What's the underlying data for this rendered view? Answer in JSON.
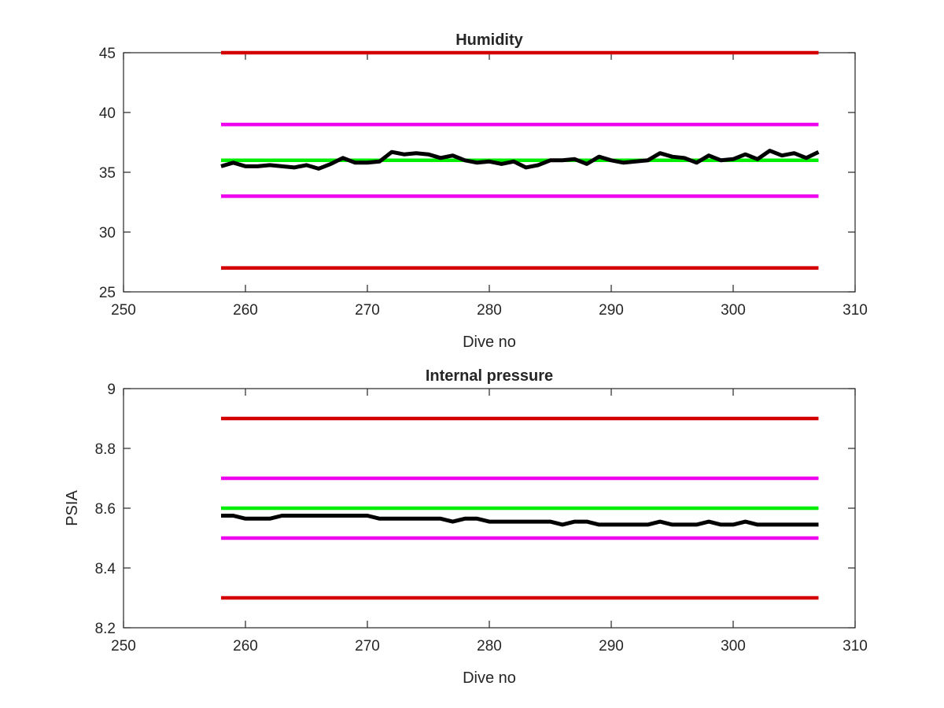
{
  "colors": {
    "background": "#ffffff",
    "axes": "#262626",
    "measured": "#000000",
    "limit_outer": "#d40000",
    "limit_inner": "#ee00ee",
    "target": "#00ee00"
  },
  "chart_data": [
    {
      "type": "line",
      "title": "Humidity",
      "xlabel": "Dive no",
      "ylabel": "",
      "xlim": [
        250,
        310
      ],
      "ylim": [
        25,
        45
      ],
      "xticks": [
        "250",
        "260",
        "270",
        "280",
        "290",
        "300",
        "310"
      ],
      "yticks": [
        "25",
        "30",
        "35",
        "40",
        "45"
      ],
      "grid": false,
      "legend": "none",
      "series": [
        {
          "color": "#d40000",
          "x": [
            258,
            307
          ],
          "y": [
            45,
            45
          ]
        },
        {
          "color": "#ee00ee",
          "x": [
            258,
            307
          ],
          "y": [
            39,
            39
          ]
        },
        {
          "color": "#00ee00",
          "x": [
            258,
            307
          ],
          "y": [
            36,
            36
          ]
        },
        {
          "color": "#ee00ee",
          "x": [
            258,
            307
          ],
          "y": [
            33,
            33
          ]
        },
        {
          "color": "#d40000",
          "x": [
            258,
            307
          ],
          "y": [
            27,
            27
          ]
        },
        {
          "color": "#000000",
          "x": [
            258,
            259,
            260,
            261,
            262,
            263,
            264,
            265,
            266,
            267,
            268,
            269,
            270,
            271,
            272,
            273,
            274,
            275,
            276,
            277,
            278,
            279,
            280,
            281,
            282,
            283,
            284,
            285,
            286,
            287,
            288,
            289,
            290,
            291,
            292,
            293,
            294,
            295,
            296,
            297,
            298,
            299,
            300,
            301,
            302,
            303,
            304,
            305,
            306,
            307
          ],
          "y": [
            35.5,
            35.8,
            35.5,
            35.5,
            35.6,
            35.5,
            35.4,
            35.6,
            35.3,
            35.7,
            36.2,
            35.8,
            35.8,
            35.9,
            36.7,
            36.5,
            36.6,
            36.5,
            36.2,
            36.4,
            36.0,
            35.8,
            35.9,
            35.7,
            35.9,
            35.4,
            35.6,
            36.0,
            36.0,
            36.1,
            35.7,
            36.3,
            36.0,
            35.8,
            35.9,
            36.0,
            36.6,
            36.3,
            36.2,
            35.8,
            36.4,
            36.0,
            36.1,
            36.5,
            36.1,
            36.8,
            36.4,
            36.6,
            36.2,
            36.7
          ]
        }
      ]
    },
    {
      "type": "line",
      "title": "Internal pressure",
      "xlabel": "Dive no",
      "ylabel": "PSIA",
      "xlim": [
        250,
        310
      ],
      "ylim": [
        8.2,
        9
      ],
      "xticks": [
        "250",
        "260",
        "270",
        "280",
        "290",
        "300",
        "310"
      ],
      "yticks": [
        "8.2",
        "8.4",
        "8.6",
        "8.8",
        "9"
      ],
      "grid": false,
      "legend": "none",
      "series": [
        {
          "color": "#d40000",
          "x": [
            258,
            307
          ],
          "y": [
            8.9,
            8.9
          ]
        },
        {
          "color": "#ee00ee",
          "x": [
            258,
            307
          ],
          "y": [
            8.7,
            8.7
          ]
        },
        {
          "color": "#00ee00",
          "x": [
            258,
            307
          ],
          "y": [
            8.6,
            8.6
          ]
        },
        {
          "color": "#ee00ee",
          "x": [
            258,
            307
          ],
          "y": [
            8.5,
            8.5
          ]
        },
        {
          "color": "#d40000",
          "x": [
            258,
            307
          ],
          "y": [
            8.3,
            8.3
          ]
        },
        {
          "color": "#000000",
          "x": [
            258,
            259,
            260,
            261,
            262,
            263,
            264,
            265,
            266,
            267,
            268,
            269,
            270,
            271,
            272,
            273,
            274,
            275,
            276,
            277,
            278,
            279,
            280,
            281,
            282,
            283,
            284,
            285,
            286,
            287,
            288,
            289,
            290,
            291,
            292,
            293,
            294,
            295,
            296,
            297,
            298,
            299,
            300,
            301,
            302,
            303,
            304,
            305,
            306,
            307
          ],
          "y": [
            8.575,
            8.575,
            8.565,
            8.565,
            8.565,
            8.575,
            8.575,
            8.575,
            8.575,
            8.575,
            8.575,
            8.575,
            8.575,
            8.565,
            8.565,
            8.565,
            8.565,
            8.565,
            8.565,
            8.555,
            8.565,
            8.565,
            8.555,
            8.555,
            8.555,
            8.555,
            8.555,
            8.555,
            8.545,
            8.555,
            8.555,
            8.545,
            8.545,
            8.545,
            8.545,
            8.545,
            8.555,
            8.545,
            8.545,
            8.545,
            8.555,
            8.545,
            8.545,
            8.555,
            8.545,
            8.545,
            8.545,
            8.545,
            8.545,
            8.545
          ]
        }
      ]
    }
  ]
}
